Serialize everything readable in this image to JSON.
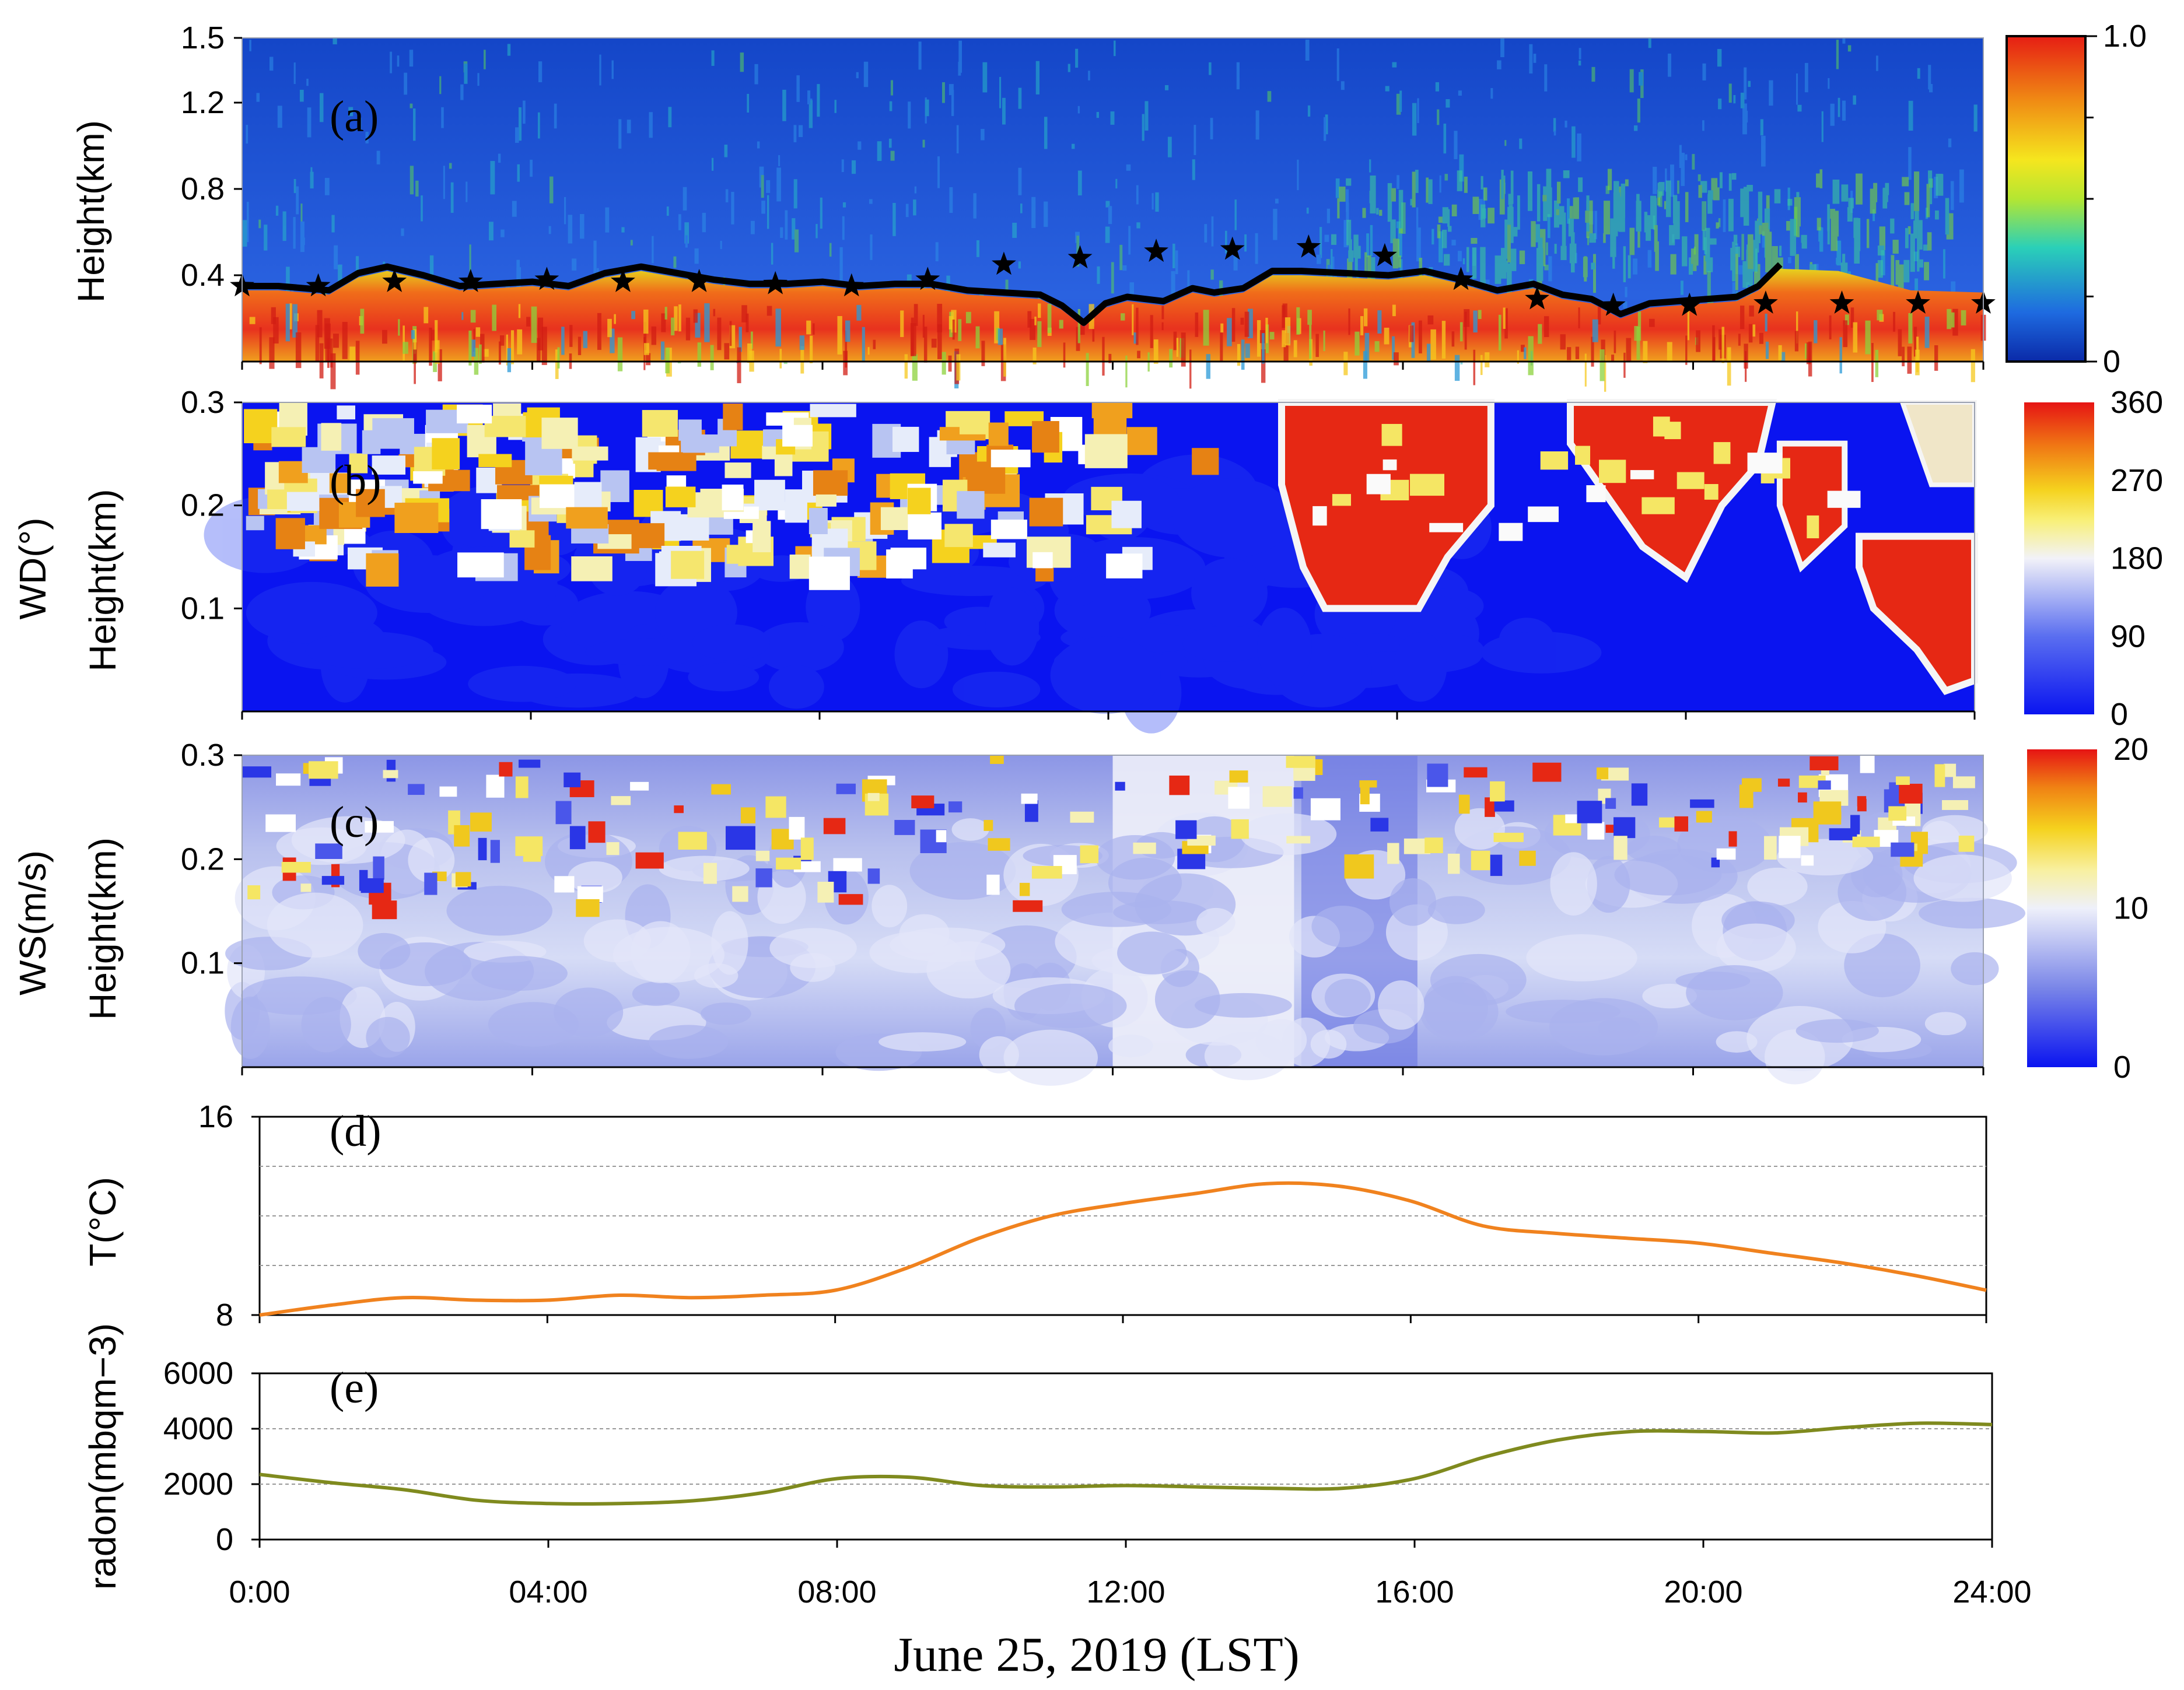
{
  "figure": {
    "xlabel": "June 25, 2019 (LST)",
    "x_ticks": [
      "0:00",
      "04:00",
      "08:00",
      "12:00",
      "16:00",
      "20:00",
      "24:00"
    ]
  },
  "colors": {
    "line_T": "#f0821e",
    "line_radon": "#7f8a1e",
    "pbl_line": "#000000"
  },
  "chart_data": [
    {
      "id": "a",
      "type": "heatmap",
      "tag": "(a)",
      "ylabel": "Height(km)",
      "y_ticks": [
        "0.4",
        "0.8",
        "1.2",
        "1.5"
      ],
      "ylim": [
        0.0,
        1.5
      ],
      "xlim": [
        0,
        24
      ],
      "colorbar": {
        "min": "0",
        "max": "1.0",
        "range": [
          0,
          1
        ]
      },
      "boundary_layer_height": {
        "x": [
          0,
          0.5,
          1.2,
          1.6,
          2.0,
          2.5,
          3.0,
          3.5,
          4.0,
          4.5,
          5.0,
          5.5,
          6.0,
          6.5,
          7.0,
          7.5,
          8.0,
          8.5,
          9.0,
          9.5,
          10.0,
          10.5,
          11.0,
          11.3,
          11.6,
          11.9,
          12.2,
          12.7,
          13.1,
          13.4,
          13.8,
          14.2,
          14.6,
          15.2,
          15.8,
          16.3,
          16.8,
          17.3,
          17.8,
          18.2,
          18.6,
          19.0,
          19.4,
          19.8,
          20.2,
          20.6,
          20.9,
          21.2
        ],
        "y": [
          0.35,
          0.35,
          0.33,
          0.41,
          0.44,
          0.4,
          0.35,
          0.36,
          0.37,
          0.35,
          0.41,
          0.44,
          0.41,
          0.38,
          0.36,
          0.36,
          0.37,
          0.35,
          0.36,
          0.36,
          0.33,
          0.32,
          0.31,
          0.26,
          0.18,
          0.27,
          0.3,
          0.28,
          0.34,
          0.32,
          0.34,
          0.42,
          0.42,
          0.41,
          0.4,
          0.42,
          0.38,
          0.33,
          0.36,
          0.31,
          0.29,
          0.22,
          0.27,
          0.28,
          0.29,
          0.3,
          0.35,
          0.45
        ]
      },
      "stars": {
        "x": [
          0,
          1.05,
          2.1,
          3.15,
          4.2,
          5.25,
          6.3,
          7.35,
          8.4,
          9.45,
          10.5,
          11.55,
          12.6,
          13.65,
          14.7,
          15.75,
          16.8,
          17.85,
          18.9,
          19.95,
          21.0,
          22.05,
          23.1,
          24.0
        ],
        "y": [
          0.35,
          0.35,
          0.37,
          0.37,
          0.38,
          0.37,
          0.37,
          0.36,
          0.35,
          0.38,
          0.45,
          0.48,
          0.51,
          0.52,
          0.53,
          0.49,
          0.38,
          0.29,
          0.26,
          0.26,
          0.27,
          0.27,
          0.27,
          0.27
        ]
      }
    },
    {
      "id": "b",
      "type": "heatmap",
      "tag": "(b)",
      "ylabel_lines": [
        "WD(°)",
        "Height(km)"
      ],
      "y_ticks": [
        "0.1",
        "0.2",
        "0.3"
      ],
      "ylim": [
        0.0,
        0.3
      ],
      "xlim": [
        0,
        24
      ],
      "colorbar": {
        "ticks": [
          "0",
          "90",
          "180",
          "270",
          "360"
        ],
        "range": [
          0,
          360
        ]
      }
    },
    {
      "id": "c",
      "type": "heatmap",
      "tag": "(c)",
      "ylabel_lines": [
        "WS(m/s)",
        "Height(km)"
      ],
      "y_ticks": [
        "0.1",
        "0.2",
        "0.3"
      ],
      "ylim": [
        0.0,
        0.3
      ],
      "xlim": [
        0,
        24
      ],
      "colorbar": {
        "ticks": [
          "0",
          "10",
          "20"
        ],
        "range": [
          0,
          20
        ]
      }
    },
    {
      "id": "d",
      "type": "line",
      "tag": "(d)",
      "ylabel": "T(°C)",
      "y_ticks": [
        "8",
        "16"
      ],
      "ylim": [
        8,
        16
      ],
      "xlim": [
        0,
        24
      ],
      "series": [
        {
          "name": "T",
          "x": [
            0,
            1,
            2,
            3,
            4,
            5,
            6,
            7,
            8,
            9,
            10,
            11,
            12,
            13,
            14,
            15,
            16,
            17,
            18,
            19,
            20,
            21,
            22,
            23,
            24
          ],
          "values": [
            8.0,
            8.4,
            8.7,
            8.6,
            8.6,
            8.8,
            8.7,
            8.8,
            9.0,
            9.9,
            11.1,
            12.0,
            12.5,
            12.9,
            13.3,
            13.2,
            12.6,
            11.6,
            11.3,
            11.1,
            10.9,
            10.5,
            10.1,
            9.6,
            9.0
          ]
        }
      ]
    },
    {
      "id": "e",
      "type": "line",
      "tag": "(e)",
      "ylabel": "radon(mbqm−3)",
      "y_ticks": [
        "0",
        "2000",
        "4000",
        "6000"
      ],
      "ylim": [
        0,
        6000
      ],
      "xlim": [
        0,
        24
      ],
      "series": [
        {
          "name": "radon",
          "x": [
            0,
            1,
            2,
            3,
            4,
            5,
            6,
            7,
            8,
            9,
            10,
            11,
            12,
            13,
            14,
            15,
            16,
            17,
            18,
            19,
            20,
            21,
            22,
            23,
            24
          ],
          "values": [
            2350,
            2050,
            1800,
            1420,
            1300,
            1300,
            1400,
            1700,
            2200,
            2250,
            1950,
            1900,
            1950,
            1900,
            1850,
            1850,
            2200,
            3000,
            3600,
            3900,
            3900,
            3850,
            4050,
            4200,
            4150
          ]
        }
      ]
    }
  ]
}
